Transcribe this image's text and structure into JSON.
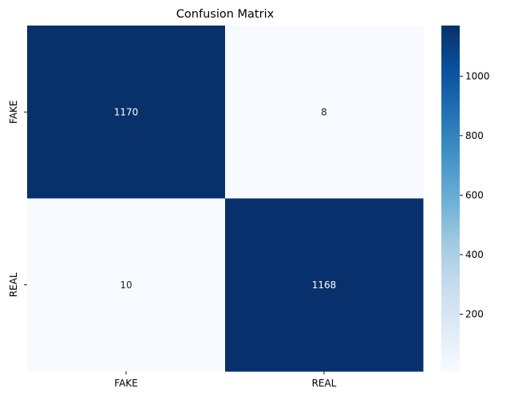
{
  "chart_data": {
    "type": "heatmap",
    "title": "Confusion Matrix",
    "x_categories": [
      "FAKE",
      "REAL"
    ],
    "y_categories": [
      "FAKE",
      "REAL"
    ],
    "values": [
      [
        1170,
        8
      ],
      [
        10,
        1168
      ]
    ],
    "xlabel": "",
    "ylabel": "",
    "colormap": "Blues",
    "color_low": "#f7fbff",
    "color_high": "#08306b",
    "colorbar": {
      "range": [
        8,
        1170
      ],
      "ticks": [
        200,
        400,
        600,
        800,
        1000
      ],
      "tick_labels": [
        "200",
        "400",
        "600",
        "800",
        "1000"
      ]
    },
    "grid": false,
    "legend": "colorbar-right"
  }
}
